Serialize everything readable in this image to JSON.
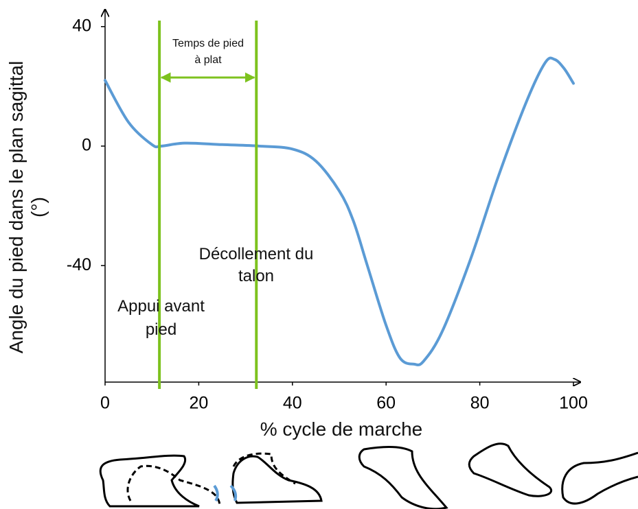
{
  "chart_data": {
    "type": "line",
    "x": [
      0,
      5,
      10,
      12,
      17,
      25,
      33,
      40,
      45,
      50,
      53,
      56,
      60,
      63,
      66,
      68,
      72,
      78,
      84,
      90,
      94,
      96,
      98,
      100
    ],
    "series": [
      {
        "color": "#5b9bd5",
        "values": [
          22,
          8,
          0.5,
          0,
          1,
          0.5,
          0,
          -1,
          -5,
          -15,
          -25,
          -40,
          -60,
          -71,
          -73,
          -72,
          -62,
          -38,
          -10,
          15,
          28,
          29,
          26,
          21
        ]
      }
    ],
    "xlim": [
      0,
      100
    ],
    "xticks": [
      0,
      20,
      40,
      60,
      80,
      100
    ],
    "ylim": [
      -79,
      45
    ],
    "yticks": [
      -40,
      0,
      40
    ],
    "xlabel": "% cycle de marche",
    "ylabel": "Angle du pied dans le plan sagittal (°)",
    "phase_lines": [
      11.6,
      32.3
    ],
    "phase_line_color": "#7dc21e",
    "annotations": [
      "Temps de pied à plat",
      "Décollement du talon",
      "Appui avant pied"
    ]
  }
}
